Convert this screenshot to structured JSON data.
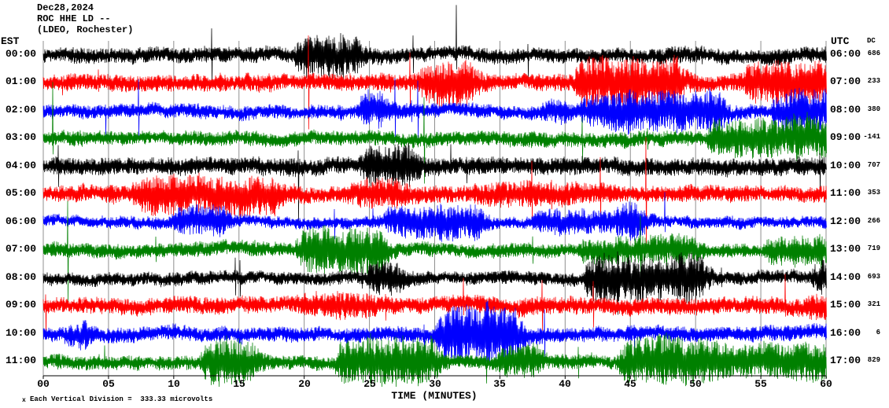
{
  "header": {
    "date": "Dec28,2024",
    "station": "ROC HHE LD --",
    "network": "(LDEO, Rochester)"
  },
  "axes": {
    "left_label": "EST",
    "right_label": "UTC",
    "dc_label": "DC",
    "x_title": "TIME (MINUTES)",
    "x_ticks": [
      "00",
      "05",
      "10",
      "15",
      "20",
      "25",
      "30",
      "35",
      "40",
      "45",
      "50",
      "55",
      "60"
    ],
    "scale_marker": "x",
    "footer": "Each Vertical Division =  333.33 microvolts"
  },
  "traces": [
    {
      "est": "00:00",
      "utc": "06:00",
      "dc": "686",
      "color": "#000000"
    },
    {
      "est": "01:00",
      "utc": "07:00",
      "dc": "233",
      "color": "#ff0000"
    },
    {
      "est": "02:00",
      "utc": "08:00",
      "dc": "380",
      "color": "#0000ff"
    },
    {
      "est": "03:00",
      "utc": "09:00",
      "dc": "-141",
      "color": "#008000"
    },
    {
      "est": "04:00",
      "utc": "10:00",
      "dc": "707",
      "color": "#000000"
    },
    {
      "est": "05:00",
      "utc": "11:00",
      "dc": "353",
      "color": "#ff0000"
    },
    {
      "est": "06:00",
      "utc": "12:00",
      "dc": "266",
      "color": "#0000ff"
    },
    {
      "est": "07:00",
      "utc": "13:00",
      "dc": "719",
      "color": "#008000"
    },
    {
      "est": "08:00",
      "utc": "14:00",
      "dc": "693",
      "color": "#000000"
    },
    {
      "est": "09:00",
      "utc": "15:00",
      "dc": "321",
      "color": "#ff0000"
    },
    {
      "est": "10:00",
      "utc": "16:00",
      "dc": "6",
      "color": "#0000ff"
    },
    {
      "est": "11:00",
      "utc": "17:00",
      "dc": "829",
      "color": "#008000"
    }
  ],
  "chart_data": {
    "type": "line",
    "title": "ROC HHE LD -- (LDEO, Rochester) helicorder, Dec28,2024",
    "xlabel": "TIME (MINUTES)",
    "x_range_minutes": [
      0,
      60
    ],
    "x_tick_interval_minutes": 5,
    "rows": 12,
    "row_interval": "1 hour per trace",
    "left_time_axis_EST": [
      "00:00",
      "01:00",
      "02:00",
      "03:00",
      "04:00",
      "05:00",
      "06:00",
      "07:00",
      "08:00",
      "09:00",
      "10:00",
      "11:00"
    ],
    "right_time_axis_UTC": [
      "06:00",
      "07:00",
      "08:00",
      "09:00",
      "10:00",
      "11:00",
      "12:00",
      "13:00",
      "14:00",
      "15:00",
      "16:00",
      "17:00"
    ],
    "dc_offsets": [
      686,
      233,
      380,
      -141,
      707,
      353,
      266,
      719,
      693,
      321,
      6,
      829
    ],
    "vertical_division_microvolts": 333.33,
    "trace_colors_cycle": [
      "#000000",
      "#ff0000",
      "#0000ff",
      "#008000"
    ],
    "grid": "vertical gridlines every 5 minutes, bottom axis with ticks",
    "grid_color": "#909090",
    "legend_position": "none",
    "waveform": "continuous band-limited seismic noise per hourly trace, with slowly wandering baseline, transient high-amplitude bursts and sharp spikes; rendered procedurally from seeded noise parameters below",
    "render": {
      "seed": 20241228,
      "base": 6.5,
      "burst_prob": 0.004,
      "spike_prob": 0.0045,
      "spike_min": 10,
      "spike_extra": 26
    }
  }
}
